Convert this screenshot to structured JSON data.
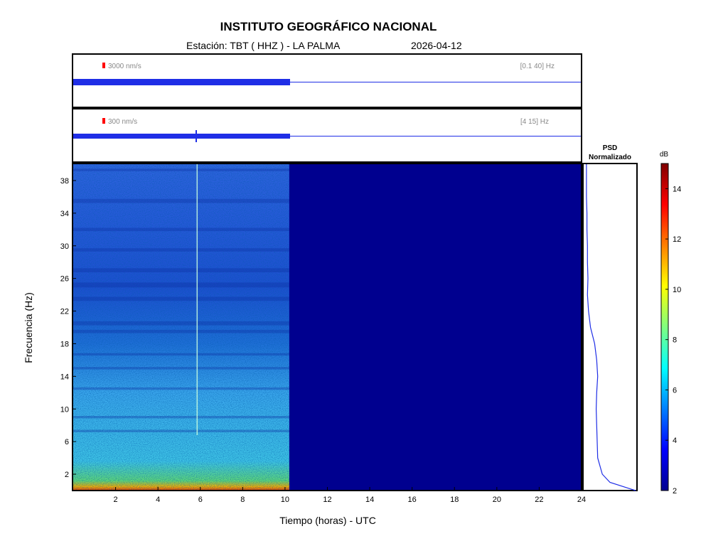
{
  "header": {
    "title": "INSTITUTO GEOGRÁFICO NACIONAL",
    "station": "Estación:  TBT ( HHZ ) - LA PALMA",
    "date": "2026-04-12"
  },
  "traces": [
    {
      "scale": "3000 nm/s",
      "band": "[0.1 40] Hz"
    },
    {
      "scale": "300 nm/s",
      "band": "[4 15] Hz"
    }
  ],
  "psd": {
    "title_line1": "PSD",
    "title_line2": "Normalizado"
  },
  "colors": {
    "empty_region": "#00008f",
    "trace": "#1f2ee6",
    "scale_marker": "#ff0000"
  },
  "chart_data": {
    "type": "heatmap",
    "title": "INSTITUTO GEOGRÁFICO NACIONAL",
    "xlabel": "Tiempo (horas) - UTC",
    "ylabel": "Frecuencia  (Hz)",
    "xlim": [
      0,
      24
    ],
    "ylim": [
      0,
      40
    ],
    "x_ticks": [
      2,
      4,
      6,
      8,
      10,
      12,
      14,
      16,
      18,
      20,
      22,
      24
    ],
    "y_ticks": [
      2,
      6,
      10,
      14,
      18,
      22,
      26,
      30,
      34,
      38
    ],
    "data_end_hour": 10.2,
    "event_hour": 5.85,
    "colorbar": {
      "label": "dB",
      "min": 2,
      "max": 15,
      "ticks": [
        2,
        4,
        6,
        8,
        10,
        12,
        14
      ]
    },
    "psd_normalized": {
      "freqs": [
        0,
        1,
        2,
        4,
        6,
        8,
        10,
        12,
        14,
        16,
        18,
        20,
        22,
        24,
        26,
        28,
        30,
        32,
        34,
        36,
        38,
        40
      ],
      "values": [
        1.0,
        0.5,
        0.35,
        0.26,
        0.25,
        0.24,
        0.23,
        0.24,
        0.26,
        0.24,
        0.2,
        0.12,
        0.08,
        0.06,
        0.07,
        0.06,
        0.06,
        0.05,
        0.05,
        0.04,
        0.04,
        0.04
      ]
    }
  }
}
